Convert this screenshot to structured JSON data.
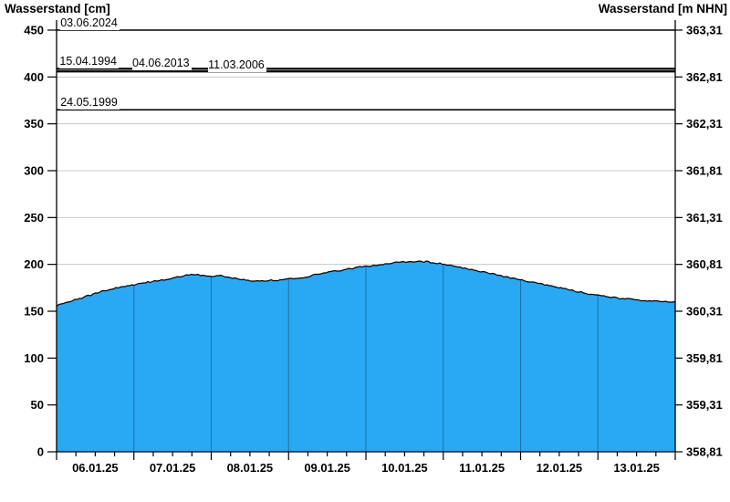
{
  "titles": {
    "left": "Wasserstand [cm]",
    "right": "Wasserstand [m NHN]"
  },
  "chart_data": {
    "type": "area",
    "title_left_axis": "Wasserstand [cm]",
    "title_right_axis": "Wasserstand [m NHN]",
    "x_axis": {
      "tick_labels": [
        "06.01.25",
        "07.01.25",
        "08.01.25",
        "09.01.25",
        "10.01.25",
        "11.01.25",
        "12.01.25",
        "13.01.25"
      ],
      "days_shown": 8,
      "minor_ticks_per_day": 3
    },
    "y_left": {
      "unit": "cm",
      "ticks": [
        0,
        50,
        100,
        150,
        200,
        250,
        300,
        350,
        400,
        450
      ],
      "range": [
        0,
        450
      ]
    },
    "y_right": {
      "unit": "m NHN",
      "tick_labels": [
        "358,81",
        "359,31",
        "359,81",
        "360,31",
        "360,81",
        "361,31",
        "361,81",
        "362,31",
        "362,81",
        "363,31"
      ]
    },
    "series": [
      {
        "name": "Wasserstand",
        "unit": "cm",
        "x_days_range": [
          0,
          8
        ],
        "values_cm": [
          156,
          159,
          162,
          165,
          168,
          171,
          174,
          176,
          177.5,
          179,
          181,
          182.5,
          184,
          186,
          188,
          189.5,
          188,
          187.5,
          188.5,
          186.5,
          184.5,
          183,
          182.5,
          182.5,
          183,
          184,
          185,
          186,
          188,
          190,
          192,
          193.5,
          195,
          196.5,
          198,
          199,
          200.5,
          201.5,
          202.5,
          203,
          203,
          202.5,
          201,
          199.5,
          197.5,
          195.5,
          193.5,
          191.5,
          189.5,
          187.5,
          185.5,
          183.5,
          181.5,
          179.5,
          177.5,
          175.5,
          173.5,
          171.5,
          169.5,
          168,
          166.5,
          165,
          163.5,
          163,
          162,
          161,
          160.5,
          160,
          159.5
        ]
      }
    ],
    "reference_lines": [
      {
        "label": "03.06.2024",
        "value_cm": 450,
        "label_day_offset": 0.05,
        "line_width": 1.6
      },
      {
        "label": "15.04.1994",
        "value_cm": 409,
        "label_day_offset": 0.04,
        "line_width": 1.8
      },
      {
        "label": "04.06.2013",
        "value_cm": 407,
        "label_day_offset": 0.98,
        "line_width": 1.4
      },
      {
        "label": "11.03.2006",
        "value_cm": 405.5,
        "label_day_offset": 1.96,
        "line_width": 1.4
      },
      {
        "label": "24.05.1999",
        "value_cm": 365,
        "label_day_offset": 0.05,
        "line_width": 1.6
      }
    ],
    "colors": {
      "fill": "#29a9f3",
      "top_line": "#000000",
      "grid": "#c8c8c8",
      "day_line": "#1e6fa8",
      "axis": "#000000"
    },
    "grid": {
      "horizontal_step_cm": 50,
      "vertical": "daily-lines-inside-area-only"
    },
    "legend": "none"
  }
}
